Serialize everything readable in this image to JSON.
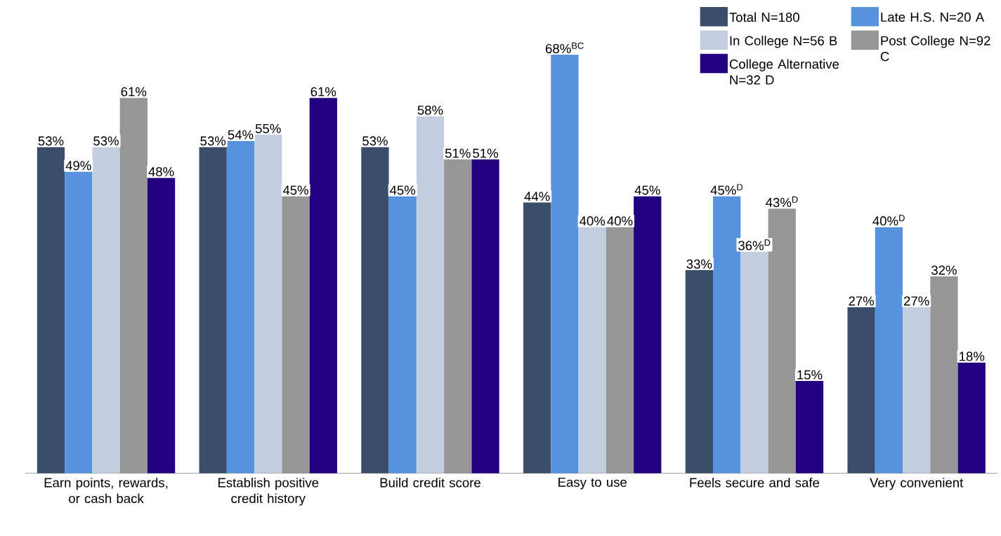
{
  "chart_data": {
    "type": "bar",
    "categories": [
      "Earn points, rewards, or cash back",
      "Establish positive credit history",
      "Build credit score",
      "Easy to use",
      "Feels secure and safe",
      "Very convenient"
    ],
    "ylim": [
      0,
      76
    ],
    "legend": "top right",
    "series": [
      {
        "name": "Total N=180",
        "color": "#3a4d6b",
        "values": [
          53,
          53,
          53,
          44,
          33,
          27
        ],
        "value_labels": [
          "53%",
          "53%",
          "53%",
          "44%",
          "33%",
          "27%"
        ]
      },
      {
        "name": "Late H.S. N=20 A",
        "color": "#5693dc",
        "values": [
          49,
          54,
          45,
          68,
          45,
          40
        ],
        "value_labels": [
          "49%",
          "54%",
          "45%",
          "68%$^{BC}$",
          "45%$^{D}$",
          "40%$^{D}$"
        ]
      },
      {
        "name": "In College N=56 B",
        "color": "#c3cde0",
        "values": [
          53,
          55,
          58,
          40,
          36,
          27
        ],
        "value_labels": [
          "53%",
          "55%",
          "58%",
          "40%",
          "36%$^{D}$",
          "27%"
        ]
      },
      {
        "name": "Post College N=92 C",
        "color": "#969696",
        "values": [
          61,
          45,
          51,
          40,
          43,
          32
        ],
        "value_labels": [
          "61%",
          "45%",
          "51%",
          "40%",
          "43%$^{D}$",
          "32%"
        ]
      },
      {
        "name": "College Alternative N=32 D",
        "color": "#22007e",
        "values": [
          48,
          61,
          51,
          45,
          15,
          18
        ],
        "value_labels": [
          "48%",
          "61%",
          "51%",
          "45%",
          "15%",
          "18%"
        ]
      }
    ]
  }
}
